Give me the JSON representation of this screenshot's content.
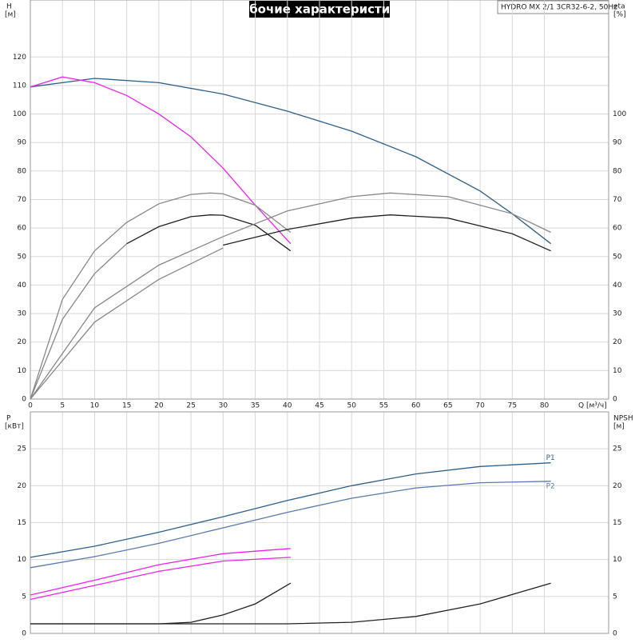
{
  "chart_data": [
    {
      "type": "line",
      "title": "Рабочие характеристики",
      "subtitle": "HYDRO MX 2/1 3CR32-6-2, 50Hz",
      "ylabel": "H",
      "yunit": "[м]",
      "y2label": "eta",
      "y2unit": "[%]",
      "xlabel": "Q [м³/ч]",
      "xlim": [
        0,
        90
      ],
      "xticks": [
        0,
        5,
        10,
        15,
        20,
        25,
        30,
        35,
        40,
        45,
        50,
        55,
        60,
        65,
        70,
        75,
        80
      ],
      "ylim": [
        0,
        140
      ],
      "yticks": [
        0,
        10,
        20,
        30,
        40,
        50,
        60,
        70,
        80,
        90,
        100,
        110,
        120
      ],
      "y2lim": [
        0,
        140
      ],
      "y2ticks": [
        0,
        10,
        20,
        30,
        40,
        50,
        60,
        70,
        80,
        90,
        100
      ],
      "grid": true,
      "series": [
        {
          "color": "#2e5f8a",
          "x": [
            0,
            10,
            20,
            30,
            40,
            50,
            60,
            70,
            75,
            81
          ],
          "values": [
            109.5,
            112.5,
            111,
            107,
            101,
            94,
            85,
            73,
            65,
            54.5
          ]
        },
        {
          "color": "#ee22ee",
          "x": [
            0,
            5,
            10,
            15,
            20,
            25,
            30,
            35,
            40.5
          ],
          "values": [
            109.5,
            113,
            111,
            106.5,
            100,
            92,
            81,
            68,
            54.5
          ]
        },
        {
          "color": "#888888",
          "axis": "y2",
          "x": [
            0,
            5,
            10,
            15,
            20,
            25,
            28,
            30,
            35,
            40.5
          ],
          "values": [
            0,
            35,
            52,
            62,
            68.5,
            71.8,
            72.3,
            72,
            68,
            58.5
          ]
        },
        {
          "color": "#888888",
          "axis": "y2",
          "x": [
            0,
            5,
            10,
            15
          ],
          "values": [
            0,
            28,
            44,
            54.5
          ]
        },
        {
          "color": "#222222",
          "axis": "y2",
          "x": [
            15,
            20,
            25,
            28,
            30,
            35,
            40.5
          ],
          "values": [
            54.5,
            60.5,
            64,
            64.6,
            64.5,
            61,
            52
          ]
        },
        {
          "color": "#888888",
          "axis": "y2",
          "x": [
            0,
            10,
            20,
            30,
            40,
            50,
            56,
            65,
            75,
            81
          ],
          "values": [
            0,
            32,
            47,
            57,
            66,
            71,
            72.3,
            71,
            65,
            58.5
          ]
        },
        {
          "color": "#888888",
          "axis": "y2",
          "x": [
            0,
            10,
            20,
            30
          ],
          "values": [
            0,
            27,
            42,
            53
          ]
        },
        {
          "color": "#222222",
          "axis": "y2",
          "x": [
            30,
            40,
            50,
            56,
            65,
            75,
            81
          ],
          "values": [
            54,
            59.5,
            63.5,
            64.6,
            63.5,
            58,
            52
          ]
        }
      ]
    },
    {
      "type": "line",
      "ylabel": "P",
      "yunit": "[кВт]",
      "y2label": "NPSH",
      "y2unit": "[м]",
      "xlim": [
        0,
        90
      ],
      "xticks": [
        0,
        5,
        10,
        15,
        20,
        25,
        30,
        35,
        40,
        45,
        50,
        55,
        60,
        65,
        70,
        75,
        80
      ],
      "ylim": [
        0,
        30
      ],
      "yticks": [
        0,
        5,
        10,
        15,
        20,
        25
      ],
      "y2lim": [
        0,
        30
      ],
      "y2ticks": [
        0,
        5,
        10,
        15,
        20,
        25
      ],
      "grid": true,
      "series": [
        {
          "name": "P1",
          "color": "#2e5f8a",
          "x": [
            0,
            10,
            20,
            30,
            40,
            50,
            60,
            70,
            81
          ],
          "values": [
            10.3,
            11.8,
            13.7,
            15.8,
            18,
            20,
            21.6,
            22.6,
            23.1
          ]
        },
        {
          "name": "P2",
          "color": "#5a78b0",
          "x": [
            0,
            10,
            20,
            30,
            40,
            50,
            60,
            70,
            81
          ],
          "values": [
            8.9,
            10.4,
            12.2,
            14.3,
            16.4,
            18.3,
            19.7,
            20.4,
            20.6
          ]
        },
        {
          "color": "#ee22ee",
          "x": [
            0,
            10,
            20,
            30,
            40.5
          ],
          "values": [
            5.2,
            7.2,
            9.3,
            10.8,
            11.5
          ]
        },
        {
          "color": "#ee22ee",
          "x": [
            0,
            10,
            20,
            30,
            40.5
          ],
          "values": [
            4.6,
            6.5,
            8.4,
            9.8,
            10.3
          ]
        },
        {
          "color": "#222222",
          "axis": "y2",
          "x": [
            0,
            20,
            25,
            30,
            35,
            40.5
          ],
          "values": [
            1.3,
            1.3,
            1.5,
            2.5,
            4,
            6.8
          ]
        },
        {
          "color": "#222222",
          "axis": "y2",
          "x": [
            0,
            40,
            50,
            60,
            70,
            81
          ],
          "values": [
            1.3,
            1.3,
            1.5,
            2.3,
            4,
            6.8
          ]
        }
      ]
    }
  ]
}
